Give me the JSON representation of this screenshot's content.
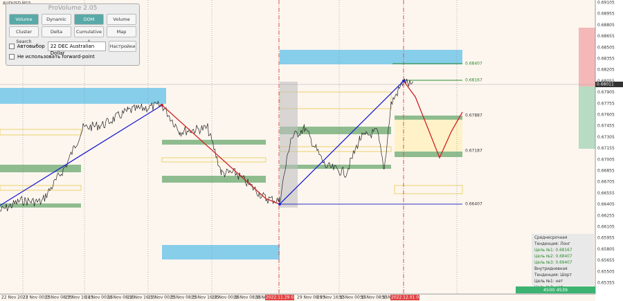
{
  "symbol": "AUDUSD,M15",
  "panel": {
    "title": "ProVolume 2.05",
    "buttons": [
      {
        "label": "Volume Profile",
        "active": true
      },
      {
        "label": "Dynamic POC",
        "active": false
      },
      {
        "label": "DOM",
        "active": true
      },
      {
        "label": "Volume",
        "active": false
      },
      {
        "label": "Cluster Search",
        "active": false
      },
      {
        "label": "Delta",
        "active": false
      },
      {
        "label": "Cumulative Δ",
        "active": false
      },
      {
        "label": "Map",
        "active": false
      }
    ],
    "auto_select": "Автовыбор",
    "instrument": "22 DEC Australian Dollar",
    "settings": "Настройки",
    "forward_point": "Не использовать forward-point"
  },
  "levels": [
    "0.68407",
    "0.68167",
    "0.67887",
    "0.67187",
    "0.66407"
  ],
  "current_price": "0.68011",
  "price_axis": [
    "0.69105",
    "0.68955",
    "0.68805",
    "0.68655",
    "0.68505",
    "0.68355",
    "0.68205",
    "0.68055",
    "0.67905",
    "0.67755",
    "0.67605",
    "0.67455",
    "0.67305",
    "0.67155",
    "0.67005",
    "0.66855",
    "0.66705",
    "0.66555",
    "0.66405",
    "0.66255",
    "0.66105",
    "0.65955",
    "0.65805",
    "0.65655",
    "0.65505",
    "0.65355"
  ],
  "time_axis": [
    "22 Nov 2022",
    "23 Nov 00:15",
    "23 Nov 08:15",
    "23 Nov 16:15",
    "24 Nov 00:15",
    "24 Nov 08:15",
    "24 Nov 16:15",
    "25 Nov 00:15",
    "25 Nov 08:15",
    "25 Nov 16:15",
    "28 Nov 00:15",
    "28 Nov 08:15",
    "28 Nov 16:15",
    "2022.11.29 02:15",
    "29 Nov 08:15",
    "29 Nov 16:15",
    "30 Nov 00:15",
    "30 Nov 08:15",
    "30 Nov 16:15",
    "2022.12.01 02:45"
  ],
  "info": {
    "medium_term": "Среднесрочная Тенденция: Лонг",
    "medium_targets": [
      "Цель №1: 0.68167",
      "Цель №2: 0.68407",
      "Цель №3: 0.69407"
    ],
    "intraday": "Внутридневная Тенденция: Шорт",
    "intraday_targets": [
      "Цель №1: нет",
      "Цель №2: нет"
    ]
  },
  "footer": "4500 4539"
}
